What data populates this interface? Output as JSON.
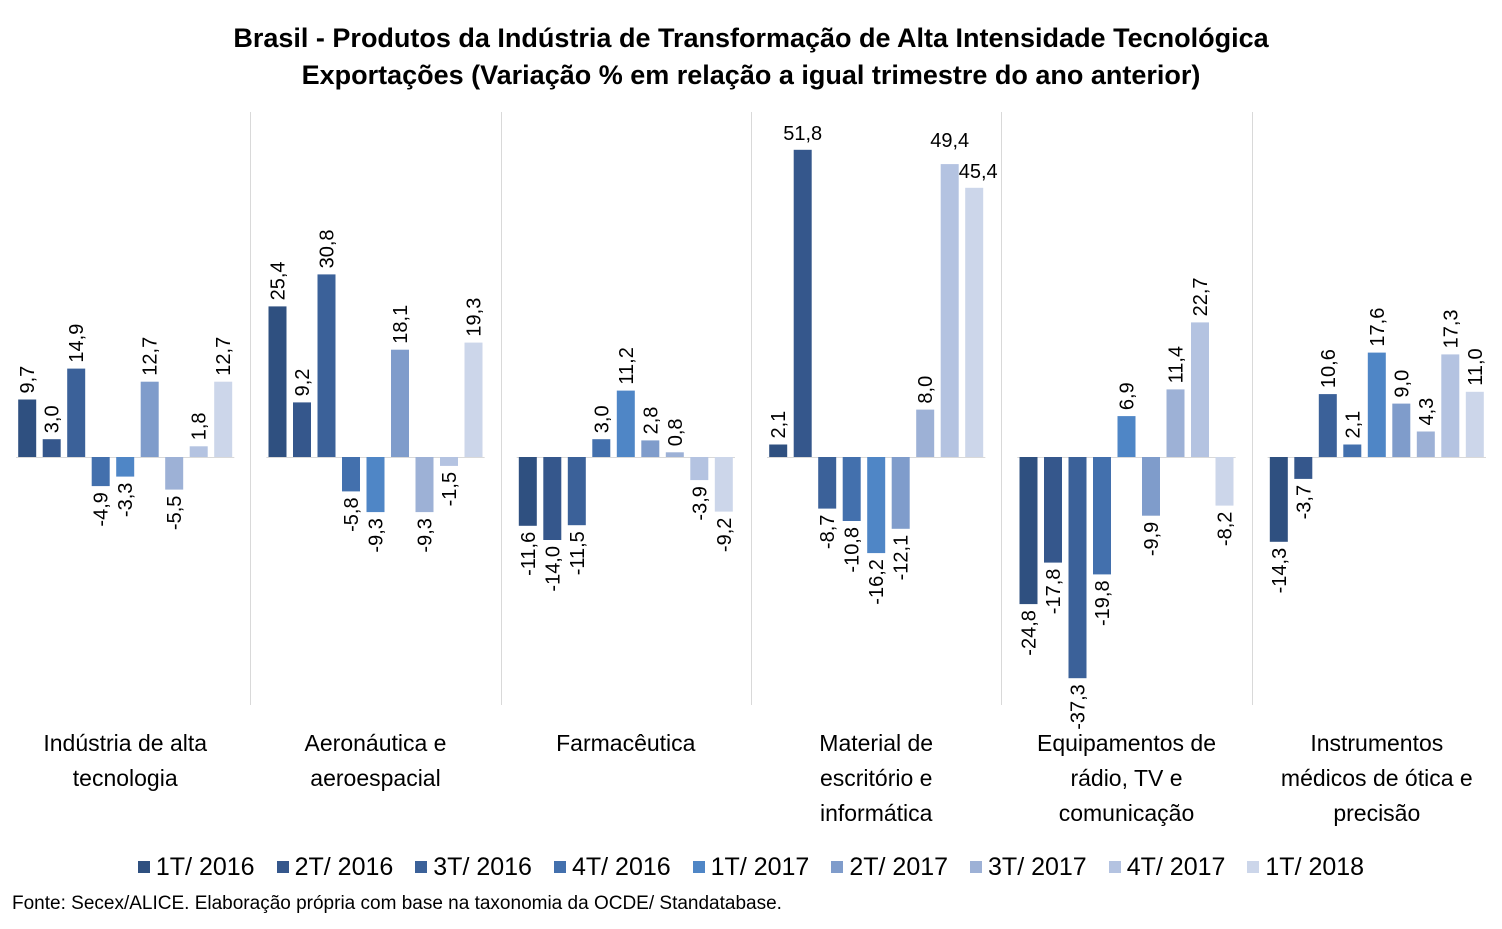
{
  "chart_data": {
    "type": "bar",
    "title": "Brasil - Produtos da Indústria de Transformação de Alta Intensidade Tecnológica",
    "subtitle": "Exportações (Variação % em relação a igual trimestre do ano anterior)",
    "categories": [
      [
        "Indústria de alta",
        "tecnologia"
      ],
      [
        "Aeronáutica e",
        "aeroespacial"
      ],
      [
        "Farmacêutica"
      ],
      [
        "Material de",
        "escritório e",
        "informática"
      ],
      [
        "Equipamentos de",
        "rádio, TV e",
        "comunicação"
      ],
      [
        "Instrumentos",
        "médicos de ótica e",
        "precisão"
      ]
    ],
    "series": [
      {
        "name": "1T/ 2016",
        "color": "#2F5080",
        "values": [
          9.7,
          25.4,
          -11.6,
          2.1,
          -24.8,
          -14.3
        ]
      },
      {
        "name": "2T/ 2016",
        "color": "#35578C",
        "values": [
          3.0,
          9.2,
          -14.0,
          51.8,
          -17.8,
          -3.7
        ]
      },
      {
        "name": "3T/ 2016",
        "color": "#3B6199",
        "values": [
          14.9,
          30.8,
          -11.5,
          -8.7,
          -37.3,
          10.6
        ]
      },
      {
        "name": "4T/ 2016",
        "color": "#4370AD",
        "values": [
          -4.9,
          -5.8,
          3.0,
          -10.8,
          -19.8,
          2.1
        ]
      },
      {
        "name": "1T/ 2017",
        "color": "#4F86C6",
        "values": [
          -3.3,
          -9.3,
          11.2,
          -16.2,
          6.9,
          17.6
        ]
      },
      {
        "name": "2T/ 2017",
        "color": "#7F9CCB",
        "values": [
          12.7,
          18.1,
          2.8,
          -12.1,
          -9.9,
          9.0
        ]
      },
      {
        "name": "3T/ 2017",
        "color": "#9DB1D6",
        "values": [
          -5.5,
          -9.3,
          0.8,
          8.0,
          11.4,
          4.3
        ]
      },
      {
        "name": "4T/ 2017",
        "color": "#B4C3E1",
        "values": [
          1.8,
          -1.5,
          -3.9,
          49.4,
          22.7,
          17.3
        ]
      },
      {
        "name": "1T/ 2018",
        "color": "#CCD6EA",
        "values": [
          12.7,
          19.3,
          -9.2,
          45.4,
          -8.2,
          11.0
        ]
      }
    ],
    "value_labels": [
      [
        "9,7",
        "3,0",
        "14,9",
        "-4,9",
        "-3,3",
        "12,7",
        "-5,5",
        "1,8",
        "12,7"
      ],
      [
        "25,4",
        "9,2",
        "30,8",
        "-5,8",
        "-9,3",
        "18,1",
        "-9,3",
        "-1,5",
        "19,3"
      ],
      [
        "-11,6",
        "-14,0",
        "-11,5",
        "3,0",
        "11,2",
        "2,8",
        "0,8",
        "-3,9",
        "-9,2"
      ],
      [
        "2,1",
        "51,8",
        "-8,7",
        "-10,8",
        "-16,2",
        "-12,1",
        "8,0",
        "49,4",
        "45,4"
      ],
      [
        "-24,8",
        "-17,8",
        "-37,3",
        "-19,8",
        "6,9",
        "-9,9",
        "11,4",
        "22,7",
        "-8,2"
      ],
      [
        "-14,3",
        "-3,7",
        "10,6",
        "2,1",
        "17,6",
        "9,0",
        "4,3",
        "17,3",
        "11,0"
      ]
    ],
    "grid": false,
    "legend_position": "bottom",
    "source": "Fonte: Secex/ALICE. Elaboração própria com base na taxonomia da OCDE/ Standatabase."
  }
}
